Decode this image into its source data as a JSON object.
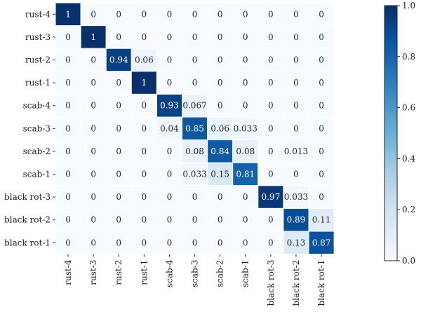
{
  "chart_data": {
    "type": "heatmap",
    "rows": [
      "rust-4",
      "rust-3",
      "rust-2",
      "rust-1",
      "scab-4",
      "scab-3",
      "scab-2",
      "scab-1",
      "black rot-3",
      "black rot-2",
      "black rot-1"
    ],
    "columns": [
      "rust-4",
      "rust-3",
      "rust-2",
      "rust-1",
      "scab-4",
      "scab-3",
      "scab-2",
      "scab-1",
      "black rot-3",
      "black rot-2",
      "black rot-1"
    ],
    "values": [
      [
        1,
        0,
        0,
        0,
        0,
        0,
        0,
        0,
        0,
        0,
        0
      ],
      [
        0,
        1,
        0,
        0,
        0,
        0,
        0,
        0,
        0,
        0,
        0
      ],
      [
        0,
        0,
        0.94,
        0.06,
        0,
        0,
        0,
        0,
        0,
        0,
        0
      ],
      [
        0,
        0,
        0,
        1,
        0,
        0,
        0,
        0,
        0,
        0,
        0
      ],
      [
        0,
        0,
        0,
        0,
        0.93,
        0.067,
        0,
        0,
        0,
        0,
        0
      ],
      [
        0,
        0,
        0,
        0,
        0.04,
        0.85,
        0.06,
        0.033,
        0,
        0,
        0
      ],
      [
        0,
        0,
        0,
        0,
        0,
        0.08,
        0.84,
        0.08,
        0,
        0.013,
        0
      ],
      [
        0,
        0,
        0,
        0,
        0,
        0.033,
        0.15,
        0.81,
        0,
        0,
        0
      ],
      [
        0,
        0,
        0,
        0,
        0,
        0,
        0,
        0,
        0.97,
        0.033,
        0
      ],
      [
        0,
        0,
        0,
        0,
        0,
        0,
        0,
        0,
        0,
        0.89,
        0.11
      ],
      [
        0,
        0,
        0,
        0,
        0,
        0,
        0,
        0,
        0,
        0.13,
        0.87
      ]
    ],
    "value_labels": [
      [
        "1",
        "0",
        "0",
        "0",
        "0",
        "0",
        "0",
        "0",
        "0",
        "0",
        "0"
      ],
      [
        "0",
        "1",
        "0",
        "0",
        "0",
        "0",
        "0",
        "0",
        "0",
        "0",
        "0"
      ],
      [
        "0",
        "0",
        "0.94",
        "0.06",
        "0",
        "0",
        "0",
        "0",
        "0",
        "0",
        "0"
      ],
      [
        "0",
        "0",
        "0",
        "1",
        "0",
        "0",
        "0",
        "0",
        "0",
        "0",
        "0"
      ],
      [
        "0",
        "0",
        "0",
        "0",
        "0.93",
        "0.067",
        "0",
        "0",
        "0",
        "0",
        "0"
      ],
      [
        "0",
        "0",
        "0",
        "0",
        "0.04",
        "0.85",
        "0.06",
        "0.033",
        "0",
        "0",
        "0"
      ],
      [
        "0",
        "0",
        "0",
        "0",
        "0",
        "0.08",
        "0.84",
        "0.08",
        "0",
        "0.013",
        "0"
      ],
      [
        "0",
        "0",
        "0",
        "0",
        "0",
        "0.033",
        "0.15",
        "0.81",
        "0",
        "0",
        "0"
      ],
      [
        "0",
        "0",
        "0",
        "0",
        "0",
        "0",
        "0",
        "0",
        "0.97",
        "0.033",
        "0"
      ],
      [
        "0",
        "0",
        "0",
        "0",
        "0",
        "0",
        "0",
        "0",
        "0",
        "0.89",
        "0.11"
      ],
      [
        "0",
        "0",
        "0",
        "0",
        "0",
        "0",
        "0",
        "0",
        "0",
        "0.13",
        "0.87"
      ]
    ],
    "colorbar": {
      "ticks": [
        0.0,
        0.2,
        0.4,
        0.6,
        0.8,
        1.0
      ],
      "tick_labels": [
        "0.0",
        "0.2",
        "0.4",
        "0.6",
        "0.8",
        "1.0"
      ],
      "range": [
        0,
        1
      ],
      "colormap": "Blues"
    },
    "colors": {
      "low": "#f7fbff",
      "high": "#08306b",
      "gridline": "#ffffff"
    },
    "title": "",
    "xlabel": "",
    "ylabel": ""
  }
}
